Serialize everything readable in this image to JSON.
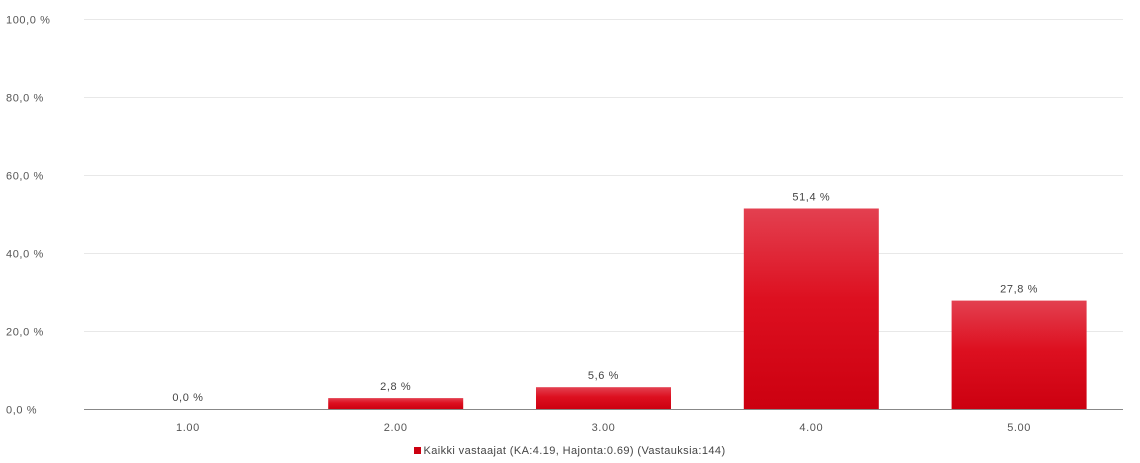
{
  "chart_data": {
    "type": "bar",
    "categories": [
      "1.00",
      "2.00",
      "3.00",
      "4.00",
      "5.00"
    ],
    "series": [
      {
        "name": "Kaikki vastaajat  (KA:4.19, Hajonta:0.69) (Vastauksia:144)",
        "values": [
          0.0,
          2.8,
          5.6,
          51.4,
          27.8
        ],
        "value_labels": [
          "0,0 %",
          "2,8 %",
          "5,6 %",
          "51,4 %",
          "27,8 %"
        ]
      }
    ],
    "y_ticks": [
      "0,0 %",
      "20,0 %",
      "40,0 %",
      "60,0 %",
      "80,0 %",
      "100,0 %"
    ],
    "ylim": [
      0,
      100
    ],
    "grid": true,
    "legend_position": "bottom-center",
    "colors": {
      "bar_top": "#e34050",
      "bar_bottom": "#cc0010",
      "gridline": "#e8e8e8",
      "axis": "#888888"
    }
  }
}
